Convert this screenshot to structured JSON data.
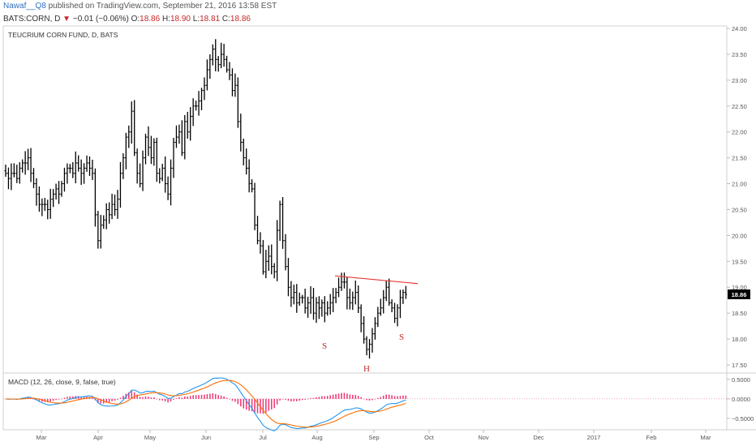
{
  "header": {
    "author": "Nawaf__Q8",
    "published": "published on TradingView.com, September 21, 2016 13:58 EST",
    "symbol": "BATS:CORN, D",
    "change": "−0.01 (−0.06%)",
    "o_label": "O:",
    "o_value": "18.86",
    "h_label": "H:",
    "h_value": "18.90",
    "l_label": "L:",
    "l_value": "18.81",
    "c_label": "C:",
    "c_value": "18.86"
  },
  "chart_data": [
    {
      "type": "ohlc",
      "title": "TEUCRIUM CORN FUND, D, BATS",
      "x_ticks": [
        "Mar",
        "Apr",
        "May",
        "Jun",
        "Jul",
        "Aug",
        "Sep",
        "Oct",
        "Nov",
        "Dec",
        "2017",
        "Feb",
        "Mar"
      ],
      "y_ticks": [
        "24.00",
        "23.50",
        "23.00",
        "22.50",
        "22.00",
        "21.50",
        "21.00",
        "20.50",
        "20.00",
        "19.50",
        "19.00",
        "18.50",
        "18.00",
        "17.50"
      ],
      "ylim": [
        17.5,
        24.0
      ],
      "last_price": "18.86",
      "closes": [
        21.2,
        21.1,
        21.2,
        21.2,
        21.1,
        21.3,
        21.4,
        21.4,
        21.5,
        21.2,
        21.0,
        20.8,
        20.6,
        20.6,
        20.6,
        20.5,
        20.7,
        20.8,
        20.9,
        20.8,
        21.0,
        21.2,
        21.3,
        21.3,
        21.2,
        21.4,
        21.3,
        21.2,
        21.3,
        21.4,
        21.3,
        21.2,
        20.4,
        19.9,
        20.2,
        20.3,
        20.5,
        20.4,
        20.6,
        20.5,
        20.7,
        21.2,
        21.5,
        21.9,
        22.0,
        22.4,
        21.6,
        21.2,
        21.0,
        21.5,
        21.9,
        21.7,
        21.5,
        21.8,
        21.2,
        21.1,
        21.3,
        21.0,
        20.8,
        21.3,
        21.8,
        21.9,
        22.0,
        21.6,
        22.2,
        22.0,
        22.3,
        22.5,
        22.5,
        22.6,
        22.8,
        22.9,
        23.2,
        23.4,
        23.6,
        23.4,
        23.3,
        23.5,
        23.4,
        23.2,
        23.1,
        22.8,
        22.9,
        22.2,
        21.8,
        21.5,
        21.3,
        21.0,
        20.9,
        20.2,
        19.9,
        19.8,
        19.3,
        19.5,
        19.6,
        19.4,
        19.3,
        20.1,
        20.6,
        19.9,
        19.4,
        19.0,
        18.8,
        18.9,
        18.7,
        18.8,
        18.8,
        18.6,
        18.7,
        18.8,
        18.5,
        18.7,
        18.6,
        18.7,
        18.5,
        18.6,
        18.7,
        18.8,
        18.9,
        19.0,
        19.1,
        19.1,
        18.8,
        18.7,
        18.8,
        18.9,
        18.6,
        18.3,
        18.0,
        17.8,
        17.9,
        18.1,
        18.3,
        18.5,
        18.6,
        18.8,
        19.0,
        18.7,
        18.6,
        18.4,
        18.6,
        18.8,
        18.9,
        18.86
      ],
      "neckline": [
        19.22,
        19.07
      ],
      "annotations": [
        "S",
        "H",
        "S"
      ]
    },
    {
      "type": "line",
      "title": "MACD (12, 26, close, 9, false, true)",
      "y_ticks": [
        "0.5000",
        "0.0000",
        "−0.5000"
      ],
      "ylim": [
        -0.75,
        0.6
      ],
      "series": [
        {
          "name": "macd",
          "color": "#2196f3"
        },
        {
          "name": "signal",
          "color": "#ff6d00"
        },
        {
          "name": "histogram",
          "color": "#e91e63"
        }
      ]
    }
  ],
  "colors": {
    "bars": "#000000",
    "neckline": "#e53935",
    "annotation": "#c62828",
    "macd": "#2196f3",
    "signal": "#ff6d00",
    "histogram": "#e91e63"
  }
}
